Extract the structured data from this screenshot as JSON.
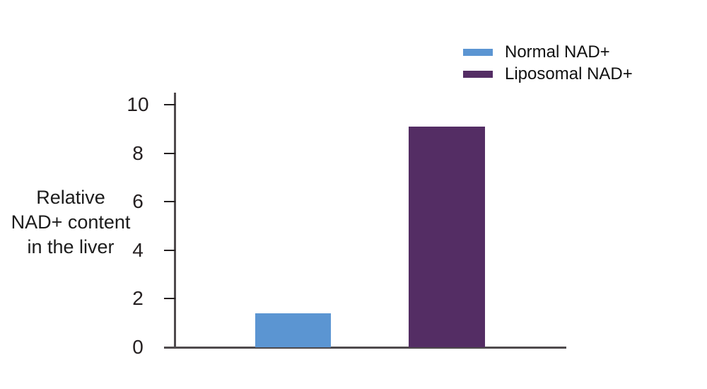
{
  "chart_data": {
    "type": "bar",
    "ylabel": "Relative NAD+ content in the liver",
    "ylabel_lines": [
      "Relative",
      "NAD+ content",
      "in the liver"
    ],
    "categories": [
      "Normal NAD+",
      "Liposomal NAD+"
    ],
    "series": [
      {
        "name": "Normal NAD+",
        "value": 1.4,
        "color": "#5b95d2"
      },
      {
        "name": "Liposomal NAD+",
        "value": 9.1,
        "color": "#542d64"
      }
    ],
    "ylim": [
      0,
      10
    ],
    "yticks": [
      0,
      2,
      4,
      6,
      8,
      10
    ],
    "legend_position": "top-right",
    "grid": false
  },
  "colors": {
    "axis": "#4f4a4d",
    "tick": "#242021",
    "text": "#1c1c1c",
    "background": "#ffffff"
  }
}
